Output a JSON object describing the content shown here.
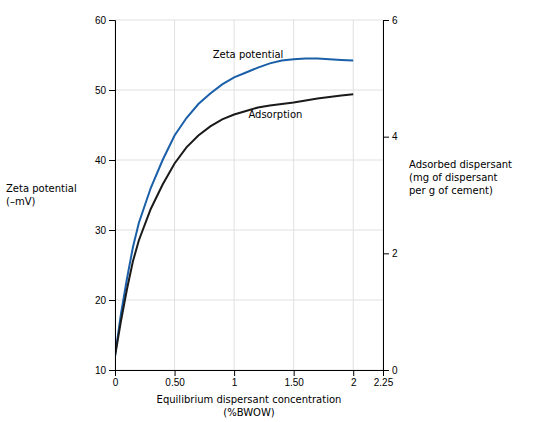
{
  "chart_data": {
    "type": "line",
    "xlabel": "Equilibrium dispersant concentration\n(%BWOW)",
    "ylabel": "Zeta potential\n(–mV)",
    "y2label": "Adsorbed dispersant\n(mg of dispersant\nper g of cement)",
    "x": [
      0,
      0.05,
      0.1,
      0.15,
      0.2,
      0.3,
      0.4,
      0.5,
      0.6,
      0.7,
      0.8,
      0.9,
      1.0,
      1.1,
      1.2,
      1.3,
      1.4,
      1.5,
      1.6,
      1.7,
      1.8,
      1.9,
      2.0
    ],
    "series": [
      {
        "color": "#1a5fa8",
        "values": [
          12,
          18,
          23,
          27.5,
          31,
          36,
          40,
          43.5,
          46,
          48,
          49.5,
          50.8,
          51.8,
          52.5,
          53.2,
          53.8,
          54.2,
          54.4,
          54.5,
          54.5,
          54.4,
          54.3,
          54.2
        ]
      },
      {
        "color": "#1a1a1a",
        "values": [
          12,
          17,
          21.5,
          25.5,
          28.5,
          33,
          36.5,
          39.5,
          41.8,
          43.5,
          44.8,
          45.8,
          46.5,
          47.0,
          47.5,
          47.8,
          48.0,
          48.2,
          48.5,
          48.8,
          49.0,
          49.2,
          49.4
        ]
      }
    ],
    "annotations": [
      {
        "text": "Zeta potential",
        "x": 0.82,
        "y": 55.0
      },
      {
        "text": "Adsorption",
        "x": 1.12,
        "y": 46.5
      }
    ],
    "xlim": [
      0,
      2.25
    ],
    "xticks": [
      0,
      {
        "value": 0.5,
        "label": "0.50"
      },
      1,
      {
        "value": 1.5,
        "label": "1.50"
      },
      2,
      2.25
    ],
    "ylim": [
      10,
      60
    ],
    "yticks": [
      10,
      20,
      30,
      40,
      50,
      60
    ],
    "y2lim": [
      0,
      6
    ],
    "y2ticks": [
      0,
      2,
      4,
      6
    ],
    "grid": true
  }
}
